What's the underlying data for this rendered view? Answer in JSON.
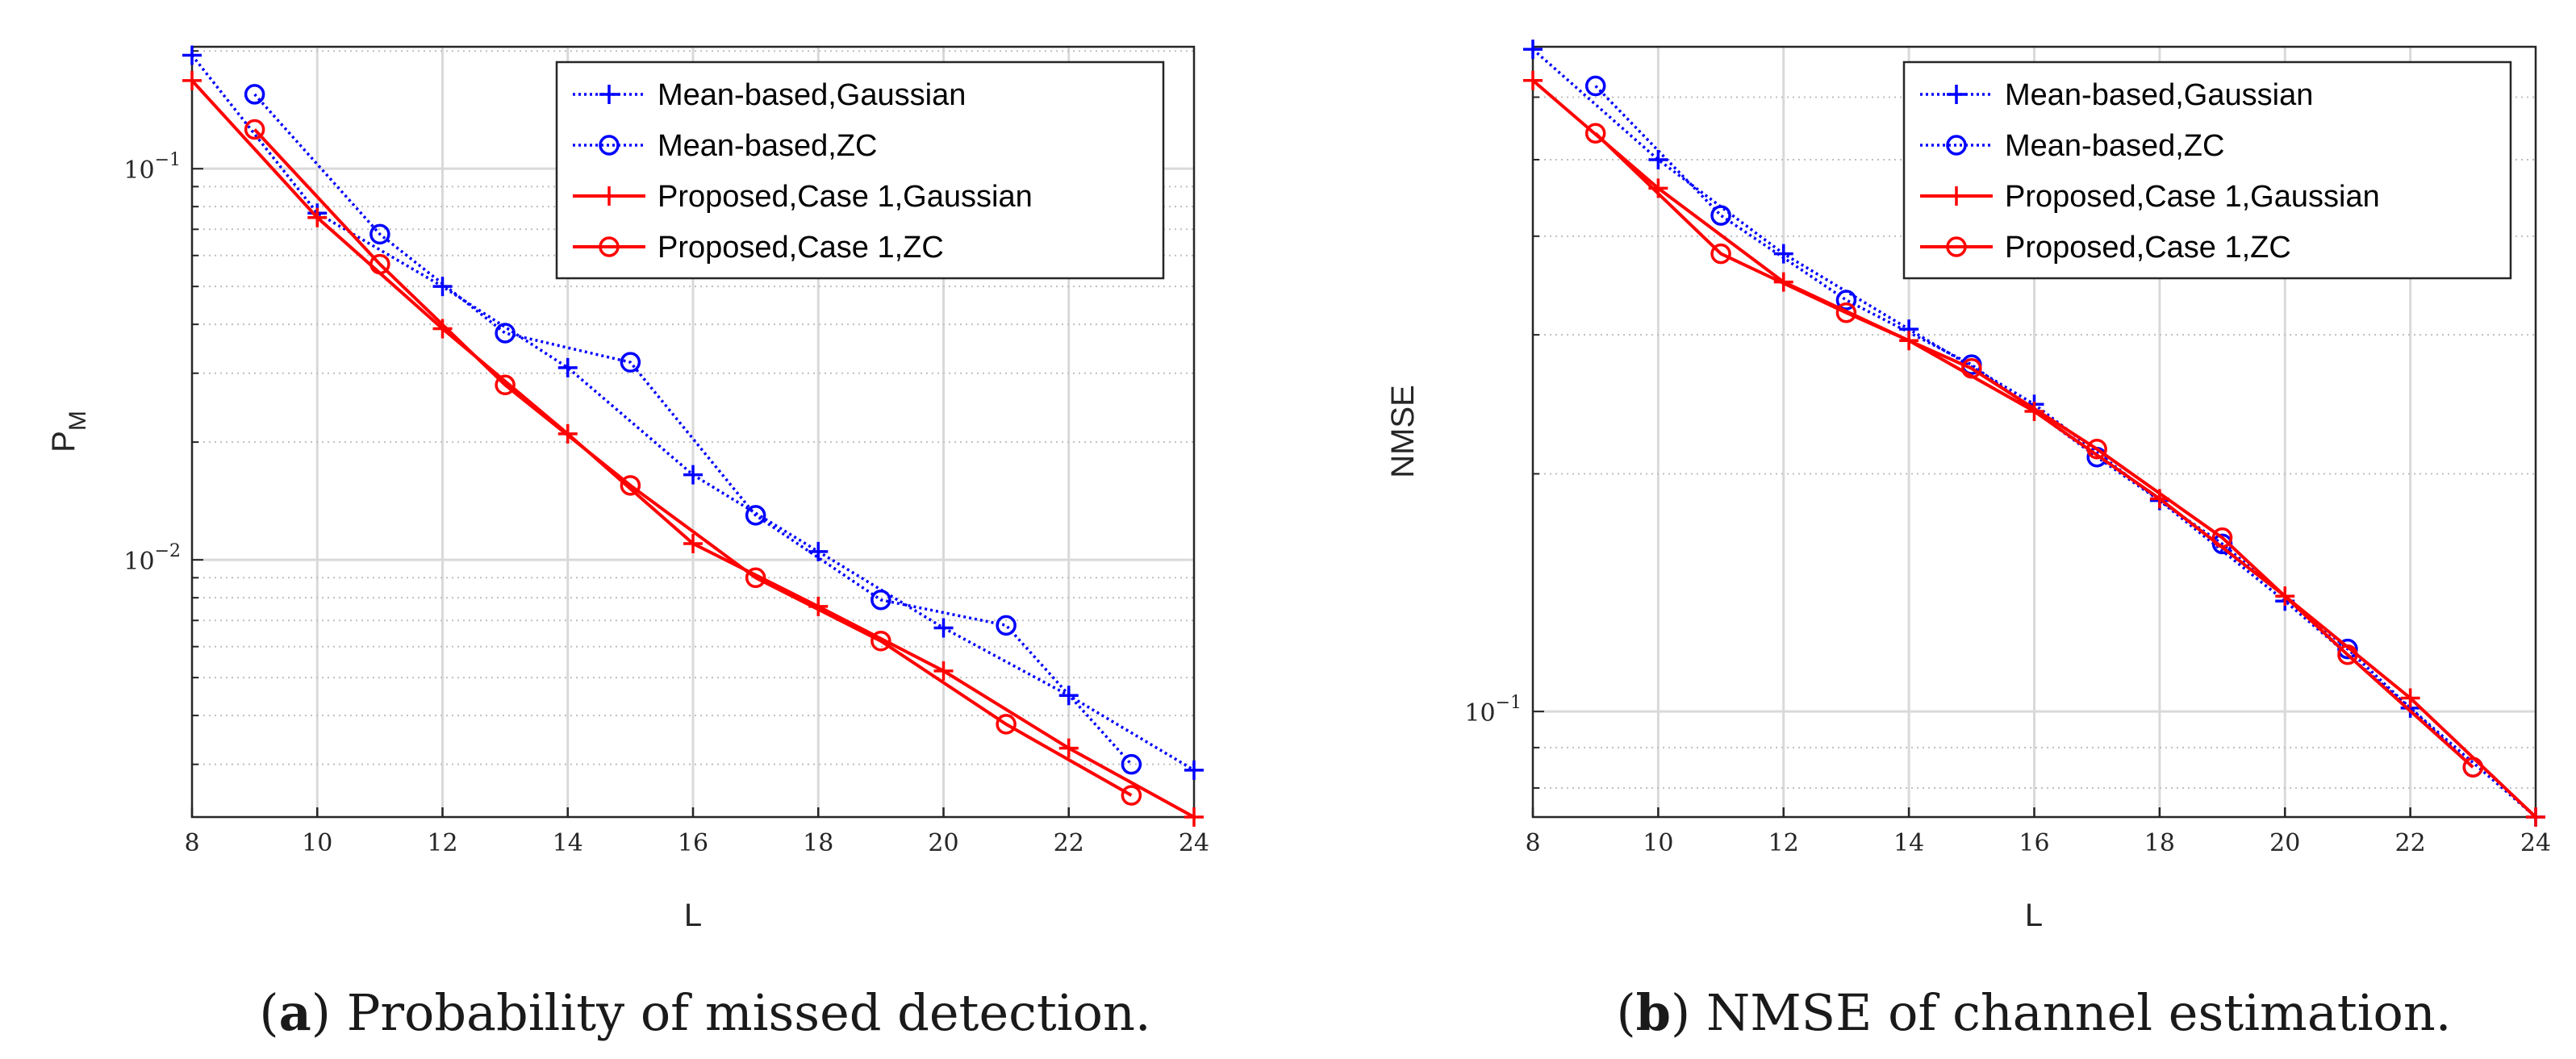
{
  "colors": {
    "blue": "#0000ff",
    "red": "#ff0000",
    "grid": "#d9d9d9",
    "axis": "#262626"
  },
  "chart_data": [
    {
      "type": "line",
      "yscale": "log",
      "xlabel": "L",
      "ylabel_main": "P",
      "ylabel_sub": "M",
      "xlim": [
        8,
        24
      ],
      "ylim": [
        0.0022,
        0.205
      ],
      "xticks": [
        8,
        10,
        12,
        14,
        16,
        18,
        20,
        22,
        24
      ],
      "yticks": [
        {
          "value": 0.1,
          "base": "10",
          "exp": "−1"
        },
        {
          "value": 0.01,
          "base": "10",
          "exp": "−2"
        }
      ],
      "grid": true,
      "legend_position": "top-right",
      "caption_letter": "a",
      "caption_text": "Probability of missed detection.",
      "series": [
        {
          "name": "Mean-based,Gaussian",
          "color": "#0000ff",
          "style": "dotted",
          "marker": "plus",
          "x": [
            8,
            10,
            12,
            14,
            16,
            18,
            20,
            22,
            24
          ],
          "y": [
            0.195,
            0.077,
            0.05,
            0.031,
            0.0165,
            0.0105,
            0.0067,
            0.0045,
            0.0029
          ]
        },
        {
          "name": "Mean-based,ZC",
          "color": "#0000ff",
          "style": "dotted",
          "marker": "circle",
          "x": [
            9,
            11,
            13,
            15,
            17,
            19,
            21,
            23
          ],
          "y": [
            0.155,
            0.068,
            0.038,
            0.032,
            0.013,
            0.0079,
            0.0068,
            0.003
          ]
        },
        {
          "name": "Proposed,Case 1,Gaussian",
          "color": "#ff0000",
          "style": "solid",
          "marker": "plus",
          "x": [
            8,
            10,
            12,
            14,
            16,
            18,
            20,
            22,
            24
          ],
          "y": [
            0.168,
            0.075,
            0.039,
            0.021,
            0.011,
            0.0076,
            0.0052,
            0.0033,
            0.0022
          ]
        },
        {
          "name": "Proposed,Case 1,ZC",
          "color": "#ff0000",
          "style": "solid",
          "marker": "circle",
          "x": [
            9,
            11,
            13,
            15,
            17,
            19,
            21,
            23
          ],
          "y": [
            0.126,
            0.057,
            0.028,
            0.0155,
            0.009,
            0.0062,
            0.0038,
            0.0025
          ]
        }
      ]
    },
    {
      "type": "line",
      "yscale": "log",
      "xlabel": "L",
      "ylabel_main": "NMSE",
      "ylabel_sub": "",
      "xlim": [
        8,
        24
      ],
      "ylim": [
        0.0735,
        0.695
      ],
      "xticks": [
        8,
        10,
        12,
        14,
        16,
        18,
        20,
        22,
        24
      ],
      "yticks": [
        {
          "value": 0.1,
          "base": "10",
          "exp": "−1"
        }
      ],
      "grid": true,
      "legend_position": "top-right",
      "caption_letter": "b",
      "caption_text": "NMSE of channel estimation.",
      "series": [
        {
          "name": "Mean-based,Gaussian",
          "color": "#0000ff",
          "style": "dotted",
          "marker": "plus",
          "x": [
            8,
            10,
            12,
            14,
            16,
            18,
            20,
            22,
            24
          ],
          "y": [
            0.69,
            0.5,
            0.38,
            0.305,
            0.245,
            0.185,
            0.138,
            0.101,
            0.0735
          ]
        },
        {
          "name": "Mean-based,ZC",
          "color": "#0000ff",
          "style": "dotted",
          "marker": "circle",
          "x": [
            9,
            11,
            13,
            15,
            17,
            19,
            21,
            23
          ],
          "y": [
            0.62,
            0.425,
            0.332,
            0.275,
            0.21,
            0.163,
            0.12,
            0.085
          ]
        },
        {
          "name": "Proposed,Case 1,Gaussian",
          "color": "#ff0000",
          "style": "solid",
          "marker": "plus",
          "x": [
            8,
            10,
            12,
            14,
            16,
            18,
            20,
            22,
            24
          ],
          "y": [
            0.63,
            0.46,
            0.35,
            0.295,
            0.24,
            0.186,
            0.14,
            0.104,
            0.0735
          ]
        },
        {
          "name": "Proposed,Case 1,ZC",
          "color": "#ff0000",
          "style": "solid",
          "marker": "circle",
          "x": [
            9,
            11,
            13,
            15,
            17,
            19,
            21,
            23
          ],
          "y": [
            0.54,
            0.38,
            0.32,
            0.272,
            0.215,
            0.166,
            0.118,
            0.085
          ]
        }
      ]
    }
  ]
}
